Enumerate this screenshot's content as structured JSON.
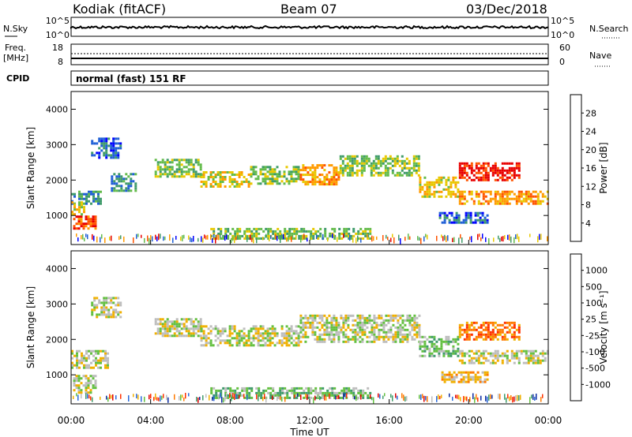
{
  "header": {
    "station": "Kodiak (fitACF)",
    "beam": "Beam 07",
    "date": "03/Dec/2018"
  },
  "noise_panel": {
    "left_label": "N.Sky",
    "right_label": "N.Search",
    "left_ticks": [
      "10^5",
      "10^0"
    ],
    "right_ticks": [
      "10^5",
      "10^0"
    ]
  },
  "freq_panel": {
    "left_label_1": "Freq.",
    "left_label_2": "[MHz]",
    "left_ticks": [
      "18",
      "8"
    ],
    "right_ticks": [
      "60",
      "0"
    ],
    "right_label": "Nave"
  },
  "cpid_panel": {
    "label": "CPID",
    "mode": "normal (fast) 151 RF"
  },
  "chart_data": [
    {
      "type": "heatmap",
      "name": "power",
      "ylabel": "Slant Range [km]",
      "ylim": [
        180,
        4500
      ],
      "yticks": [
        1000,
        2000,
        3000,
        4000
      ],
      "colorbar": {
        "label": "Power [dB]",
        "ticks": [
          "4",
          "8",
          "12",
          "16",
          "20",
          "24",
          "28"
        ],
        "colors": [
          "#0000ff",
          "#1f5fd6",
          "#3f9b6a",
          "#63bb4a",
          "#e8c800",
          "#ff9a00",
          "#ff5400",
          "#e80000"
        ]
      },
      "bands": [
        {
          "t": [
            0.0,
            1.5
          ],
          "r": [
            1300,
            1700
          ],
          "level": 2
        },
        {
          "t": [
            0.1,
            1.2
          ],
          "r": [
            600,
            1000
          ],
          "level": 6
        },
        {
          "t": [
            0.0,
            0.7
          ],
          "r": [
            1000,
            1400
          ],
          "level": 4
        },
        {
          "t": [
            1.0,
            2.5
          ],
          "r": [
            2600,
            3200
          ],
          "level": 1
        },
        {
          "t": [
            2.0,
            3.2
          ],
          "r": [
            1700,
            2200
          ],
          "level": 2
        },
        {
          "t": [
            4.2,
            6.5
          ],
          "r": [
            2100,
            2600
          ],
          "level": 3
        },
        {
          "t": [
            6.5,
            9.0
          ],
          "r": [
            1800,
            2250
          ],
          "level": 4
        },
        {
          "t": [
            9.0,
            11.5
          ],
          "r": [
            1900,
            2400
          ],
          "level": 3
        },
        {
          "t": [
            11.5,
            13.5
          ],
          "r": [
            1900,
            2450
          ],
          "level": 5
        },
        {
          "t": [
            13.5,
            17.5
          ],
          "r": [
            2100,
            2700
          ],
          "level": 3
        },
        {
          "t": [
            17.5,
            19.5
          ],
          "r": [
            1500,
            2100
          ],
          "level": 4
        },
        {
          "t": [
            19.5,
            24.0
          ],
          "r": [
            1300,
            1700
          ],
          "level": 5
        },
        {
          "t": [
            19.5,
            22.5
          ],
          "r": [
            2000,
            2500
          ],
          "level": 7
        },
        {
          "t": [
            18.5,
            21.0
          ],
          "r": [
            800,
            1100
          ],
          "level": 1
        },
        {
          "t": [
            7.0,
            15.0
          ],
          "r": [
            350,
            650
          ],
          "level": 3
        }
      ]
    },
    {
      "type": "heatmap",
      "name": "velocity",
      "ylabel": "Slant Range [km]",
      "ylim": [
        180,
        4500
      ],
      "yticks": [
        1000,
        2000,
        3000,
        4000
      ],
      "colorbar": {
        "label": "Velocity [m s⁻¹]",
        "ticks": [
          "1000",
          "500",
          "100",
          "25",
          "-25",
          "-100",
          "-500",
          "-1000"
        ],
        "colors": [
          "#0a2aa0",
          "#2a6adb",
          "#3f9b6a",
          "#63c040",
          "#bdbdbd",
          "#f0b000",
          "#ff7a00",
          "#ff3000",
          "#e00000"
        ]
      },
      "bands": [
        {
          "t": [
            0.0,
            1.8
          ],
          "r": [
            1200,
            1700
          ],
          "level": 4
        },
        {
          "t": [
            0.1,
            1.2
          ],
          "r": [
            500,
            1000
          ],
          "level": 4
        },
        {
          "t": [
            1.0,
            2.5
          ],
          "r": [
            2600,
            3200
          ],
          "level": 4
        },
        {
          "t": [
            4.2,
            6.5
          ],
          "r": [
            2100,
            2600
          ],
          "level": 4
        },
        {
          "t": [
            6.5,
            11.5
          ],
          "r": [
            1800,
            2400
          ],
          "level": 4
        },
        {
          "t": [
            11.5,
            17.5
          ],
          "r": [
            1900,
            2700
          ],
          "level": 4
        },
        {
          "t": [
            17.5,
            19.5
          ],
          "r": [
            1500,
            2100
          ],
          "level": 3
        },
        {
          "t": [
            19.5,
            24.0
          ],
          "r": [
            1300,
            1700
          ],
          "level": 4
        },
        {
          "t": [
            19.5,
            22.5
          ],
          "r": [
            2000,
            2500
          ],
          "level": 6
        },
        {
          "t": [
            18.5,
            21.0
          ],
          "r": [
            800,
            1100
          ],
          "level": 5
        },
        {
          "t": [
            7.0,
            15.0
          ],
          "r": [
            350,
            650
          ],
          "level": 3
        }
      ]
    }
  ],
  "xaxis": {
    "label": "Time UT",
    "ticks": [
      "00:00",
      "04:00",
      "08:00",
      "12:00",
      "16:00",
      "20:00",
      "00:00"
    ]
  }
}
